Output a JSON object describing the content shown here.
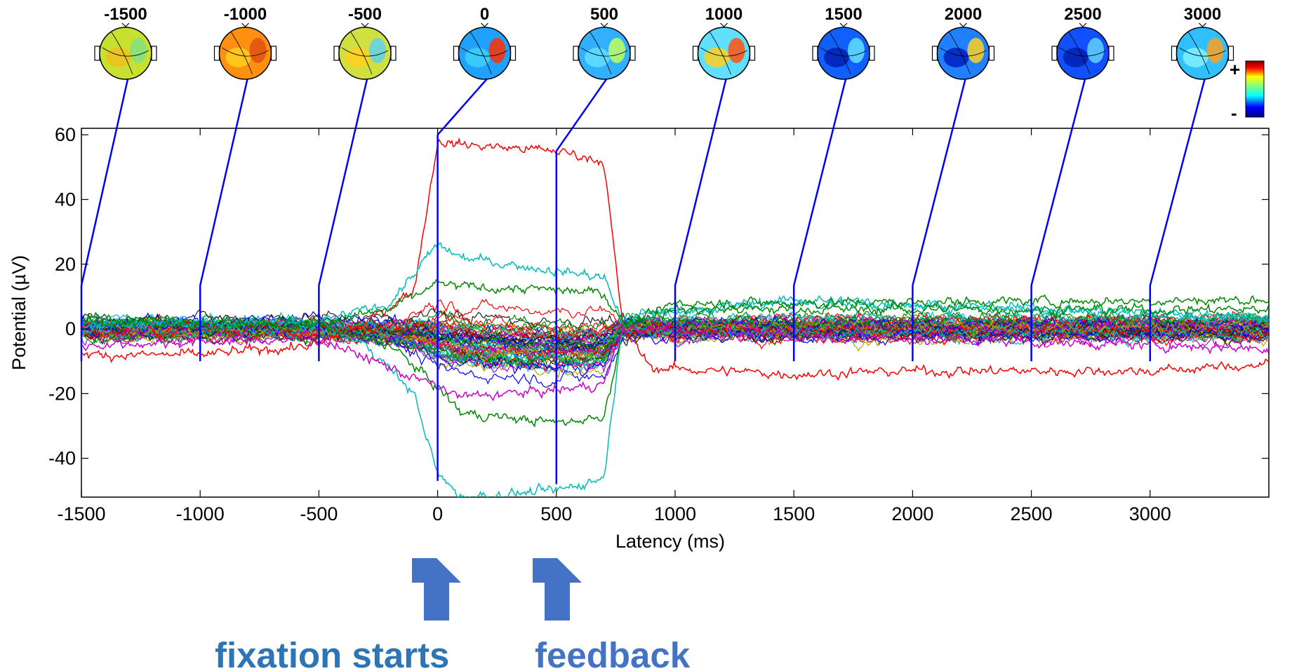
{
  "chart_data": {
    "type": "line",
    "xlabel": "Latency (ms)",
    "ylabel": "Potential (µV)",
    "xlim": [
      -1500,
      3500
    ],
    "ylim": [
      -52,
      62
    ],
    "xticks": [
      -1500,
      -1000,
      -500,
      0,
      500,
      1000,
      1500,
      2000,
      2500,
      3000
    ],
    "yticks": [
      -40,
      -20,
      0,
      20,
      40,
      60
    ],
    "grid": false,
    "series_description_count": 60,
    "highlighted_series": [
      {
        "color": "#ff0000",
        "x": [
          -1500,
          -1000,
          -500,
          -300,
          -100,
          0,
          100,
          500,
          700,
          780,
          900,
          1500,
          2000,
          3000,
          3500
        ],
        "y": [
          -8,
          -8,
          -5,
          2,
          12,
          58,
          57,
          55,
          52,
          0,
          -12,
          -14,
          -13,
          -13,
          -11
        ]
      },
      {
        "color": "#00bbbb",
        "x": [
          -1500,
          -500,
          -300,
          -100,
          0,
          100,
          500,
          700,
          780,
          900,
          1500,
          2500,
          3500
        ],
        "y": [
          2,
          1,
          -5,
          -20,
          -45,
          -52,
          -50,
          -46,
          2,
          5,
          8,
          6,
          3
        ]
      },
      {
        "color": "#00bbbb",
        "x": [
          -1500,
          -500,
          -200,
          0,
          100,
          500,
          700,
          780,
          900,
          1500,
          3500
        ],
        "y": [
          2,
          2,
          8,
          26,
          22,
          18,
          16,
          2,
          5,
          9,
          4
        ]
      },
      {
        "color": "#008800",
        "x": [
          -1500,
          -500,
          -200,
          0,
          100,
          500,
          700,
          780,
          1000,
          1500,
          3500
        ],
        "y": [
          2,
          1,
          -5,
          -18,
          -26,
          -29,
          -27,
          0,
          8,
          8,
          9
        ]
      },
      {
        "color": "#008800",
        "x": [
          -1500,
          -500,
          -200,
          0,
          100,
          500,
          700,
          780,
          1000,
          3500
        ],
        "y": [
          3,
          2,
          6,
          14,
          13,
          12,
          11,
          2,
          6,
          6
        ]
      },
      {
        "color": "#cc00cc",
        "x": [
          -1500,
          -500,
          0,
          100,
          500,
          700,
          780,
          1500,
          3500
        ],
        "y": [
          -5,
          -3,
          -18,
          -21,
          -19,
          -17,
          0,
          -2,
          -6
        ]
      }
    ],
    "topomap_latencies": [
      "-1500",
      "-1000",
      "-500",
      "0",
      "500",
      "1000",
      "1500",
      "2000",
      "2500",
      "3000"
    ],
    "topomap_scale": [
      "+",
      "-"
    ],
    "annotations": [
      "fixation starts",
      "feedback"
    ]
  },
  "colors": {
    "marker_line": "#0000ff",
    "arrow": "#4472c4",
    "note_fixation": "#2e75b6",
    "note_feedback": "#4472c4"
  }
}
